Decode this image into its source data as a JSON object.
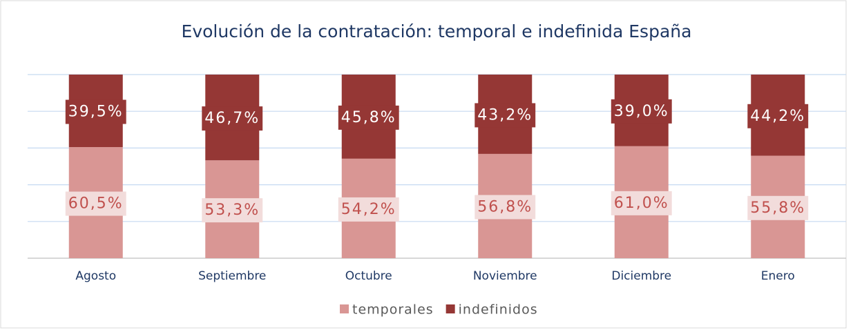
{
  "chart_data": {
    "type": "stacked-bar",
    "title": "Evolución de la contratación: temporal e indefinida España",
    "categories": [
      "Agosto",
      "Septiembre",
      "Octubre",
      "Noviembre",
      "Diciembre",
      "Enero"
    ],
    "series": [
      {
        "name": "temporales",
        "color": "#d99694",
        "values": [
          60.5,
          53.3,
          54.2,
          56.8,
          61.0,
          55.8
        ],
        "value_labels": [
          "60,5%",
          "53,3%",
          "54,2%",
          "56,8%",
          "61,0%",
          "55,8%"
        ]
      },
      {
        "name": "indefinidos",
        "color": "#953735",
        "values": [
          39.5,
          46.7,
          45.8,
          43.2,
          39.0,
          44.2
        ],
        "value_labels": [
          "39,5%",
          "46,7%",
          "45,8%",
          "43,2%",
          "39,0%",
          "44,2%"
        ]
      }
    ],
    "ylim": [
      0,
      100
    ],
    "yticks": [
      0,
      20,
      40,
      60,
      80,
      100
    ],
    "grid": true,
    "legend": "bottom"
  }
}
